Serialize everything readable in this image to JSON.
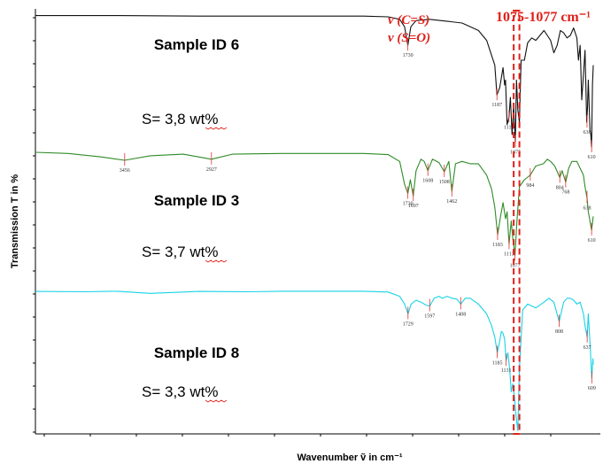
{
  "chart_data": {
    "type": "line",
    "xlabel": "Wavenumber ṽ in cm⁻¹",
    "ylabel": "Transmission  T in %",
    "xlim": [
      4000,
      600
    ],
    "x_reversed": true,
    "grid": false,
    "series": [
      {
        "name": "Sample ID 6",
        "sulfur": "S= 3,8 wt%",
        "color": "#111111",
        "x": [
          4000,
          3500,
          3000,
          2500,
          2000,
          1850,
          1780,
          1750,
          1730,
          1712,
          1680,
          1600,
          1500,
          1400,
          1300,
          1250,
          1200,
          1187,
          1170,
          1150,
          1140,
          1135,
          1125,
          1114,
          1105,
          1095,
          1085,
          1075,
          1068,
          1060,
          1050,
          1040,
          1020,
          1000,
          975,
          950,
          925,
          900,
          880,
          860,
          840,
          820,
          800,
          780,
          760,
          740,
          720,
          700,
          690,
          680,
          670,
          660,
          650,
          640,
          635,
          630,
          620,
          615,
          610,
          605,
          600
        ],
        "y": [
          98,
          98,
          97.8,
          97.8,
          97.8,
          97.5,
          96.5,
          93.5,
          86,
          93.5,
          96,
          96.5,
          95.8,
          95,
          92,
          88,
          78,
          66,
          69,
          77,
          70,
          72,
          54,
          57,
          65,
          50,
          62,
          47,
          72,
          60,
          55,
          80,
          80,
          87,
          89,
          88,
          90,
          92,
          90,
          88,
          83,
          86,
          92,
          91,
          89,
          90,
          93,
          89,
          80,
          86,
          64,
          74,
          84,
          55,
          61,
          72,
          52,
          50,
          45,
          70,
          78
        ],
        "peaks": [
          {
            "x": 1730,
            "y": 86,
            "label": "1730"
          },
          {
            "x": 1187,
            "y": 66,
            "label": "1187"
          },
          {
            "x": 1114,
            "y": 57,
            "label": "1114"
          },
          {
            "x": 1075,
            "y": 47,
            "label": "1075"
          },
          {
            "x": 638,
            "y": 55,
            "label": "638"
          },
          {
            "x": 610,
            "y": 45,
            "label": "610"
          }
        ]
      },
      {
        "name": "Sample ID 3",
        "sulfur": "S= 3,7 wt%",
        "color": "#2e8b26",
        "x": [
          4000,
          3800,
          3600,
          3456,
          3300,
          3100,
          2927,
          2800,
          2500,
          2000,
          1850,
          1780,
          1750,
          1730,
          1715,
          1697,
          1680,
          1650,
          1630,
          1608,
          1580,
          1540,
          1508,
          1480,
          1462,
          1440,
          1400,
          1350,
          1300,
          1250,
          1220,
          1200,
          1183,
          1165,
          1150,
          1135,
          1125,
          1113,
          1100,
          1090,
          1077,
          1065,
          1050,
          1020,
          984,
          950,
          904,
          880,
          860,
          835,
          804,
          790,
          768,
          750,
          730,
          700,
          680,
          660,
          650,
          638,
          630,
          610,
          600
        ],
        "y": [
          100,
          99.5,
          98,
          96.5,
          98.5,
          99.2,
          97,
          99.2,
          99.5,
          99.5,
          99,
          96,
          86,
          82,
          88,
          81,
          92,
          97,
          96,
          92,
          97,
          95.5,
          91.5,
          96,
          83,
          95,
          96,
          95,
          95,
          90,
          84,
          76,
          64,
          72,
          78,
          71,
          74,
          60,
          70,
          62,
          55,
          70,
          85,
          88,
          90,
          94,
          95,
          97,
          96,
          94,
          89,
          92,
          87,
          93,
          96,
          96,
          93,
          90,
          85,
          80,
          74,
          66,
          72
        ],
        "peaks": [
          {
            "x": 3456,
            "y": 96.5,
            "label": "3456"
          },
          {
            "x": 2927,
            "y": 97,
            "label": "2927"
          },
          {
            "x": 1730,
            "y": 82,
            "label": "1730"
          },
          {
            "x": 1697,
            "y": 81,
            "label": "1697"
          },
          {
            "x": 1608,
            "y": 92,
            "label": "1608"
          },
          {
            "x": 1508,
            "y": 91.5,
            "label": "1508"
          },
          {
            "x": 1462,
            "y": 83,
            "label": "1462"
          },
          {
            "x": 1183,
            "y": 64,
            "label": "1183"
          },
          {
            "x": 1113,
            "y": 60,
            "label": "1113"
          },
          {
            "x": 1077,
            "y": 55,
            "label": "1077"
          },
          {
            "x": 984,
            "y": 90,
            "label": "984"
          },
          {
            "x": 804,
            "y": 89,
            "label": "804"
          },
          {
            "x": 768,
            "y": 87,
            "label": "768"
          },
          {
            "x": 638,
            "y": 80,
            "label": "638"
          },
          {
            "x": 610,
            "y": 66,
            "label": "610"
          }
        ]
      },
      {
        "name": "Sample ID 8",
        "sulfur": "S= 3,3 wt%",
        "color": "#19d2e6",
        "x": [
          4000,
          3700,
          3500,
          3300,
          3000,
          2700,
          2500,
          2000,
          1850,
          1780,
          1750,
          1729,
          1710,
          1680,
          1650,
          1620,
          1597,
          1570,
          1540,
          1520,
          1490,
          1460,
          1430,
          1408,
          1380,
          1350,
          1300,
          1250,
          1220,
          1200,
          1185,
          1170,
          1160,
          1150,
          1140,
          1131,
          1120,
          1110,
          1100,
          1090,
          1080,
          1070,
          1060,
          1050,
          1030,
          1000,
          950,
          900,
          870,
          840,
          808,
          780,
          760,
          740,
          720,
          700,
          680,
          660,
          650,
          637,
          630,
          625,
          618,
          609,
          602,
          600
        ],
        "y": [
          99.5,
          99.3,
          99.6,
          98.5,
          99.5,
          99.3,
          99.6,
          99.6,
          99.2,
          97,
          93,
          88,
          93,
          95,
          94,
          92.5,
          92,
          96,
          97,
          96,
          97,
          96,
          95.5,
          93,
          96,
          96,
          93,
          88,
          82,
          76,
          68,
          74,
          79,
          78,
          75,
          64,
          68,
          60,
          48,
          52,
          45,
          35,
          28,
          60,
          90,
          93,
          91,
          94,
          96,
          94,
          84,
          94,
          96,
          96,
          95,
          93,
          94,
          88,
          82,
          76,
          88,
          80,
          70,
          55,
          65,
          62
        ],
        "peaks": [
          {
            "x": 1729,
            "y": 88,
            "label": "1729"
          },
          {
            "x": 1597,
            "y": 92,
            "label": "1597"
          },
          {
            "x": 1408,
            "y": 93,
            "label": "1408"
          },
          {
            "x": 1185,
            "y": 68,
            "label": "1185"
          },
          {
            "x": 1131,
            "y": 64,
            "label": "1131"
          },
          {
            "x": 808,
            "y": 84,
            "label": "808"
          },
          {
            "x": 637,
            "y": 76,
            "label": "637"
          },
          {
            "x": 609,
            "y": 55,
            "label": "609"
          }
        ]
      }
    ],
    "annotations": {
      "band_assign_1": "ν (C=S)",
      "band_assign_2": "ν (S=O)",
      "highlight_range_label": "1075-1077 cm⁻¹",
      "highlight_range": [
        1085,
        1050
      ],
      "annotation_color": "#e0201a"
    }
  }
}
